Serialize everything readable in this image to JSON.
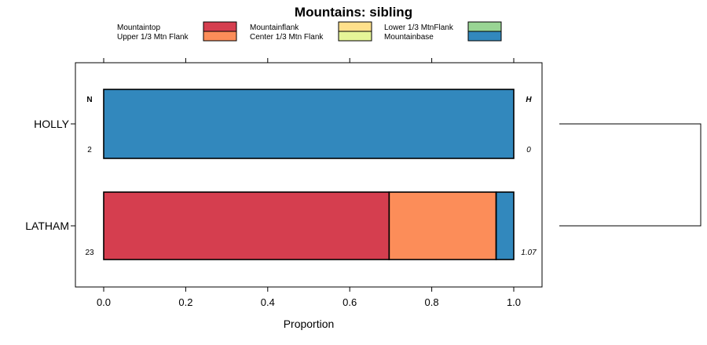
{
  "chart_data": {
    "type": "bar",
    "orientation": "horizontal",
    "stacked": true,
    "title": "Mountains: sibling",
    "xlabel": "Proportion",
    "ylabel": "",
    "xlim": [
      -0.07,
      1.07
    ],
    "xticks": [
      0.0,
      0.2,
      0.4,
      0.6,
      0.8,
      1.0
    ],
    "xtick_labels": [
      "0.0",
      "0.2",
      "0.4",
      "0.6",
      "0.8",
      "1.0"
    ],
    "categories": [
      "HOLLY",
      "LATHAM"
    ],
    "series": [
      {
        "name": "Mountaintop",
        "color": "#d53e4f",
        "values": [
          0.0,
          0.696
        ]
      },
      {
        "name": "Upper 1/3 Mtn Flank",
        "color": "#fc8d59",
        "values": [
          0.0,
          0.261
        ]
      },
      {
        "name": "Mountainflank",
        "color": "#fee08b",
        "values": [
          0.0,
          0.0
        ]
      },
      {
        "name": "Center 1/3 Mtn Flank",
        "color": "#e6f598",
        "values": [
          0.0,
          0.0
        ]
      },
      {
        "name": "Lower 1/3 MtnFlank",
        "color": "#99d594",
        "values": [
          0.0,
          0.0
        ]
      },
      {
        "name": "Mountainbase",
        "color": "#3288bd",
        "values": [
          1.0,
          0.043
        ]
      }
    ],
    "n_header": "N",
    "h_header": "H",
    "n_values": [
      "2",
      "23"
    ],
    "h_values": [
      "0",
      "1.07"
    ],
    "legend_position": "top",
    "grid": false
  }
}
